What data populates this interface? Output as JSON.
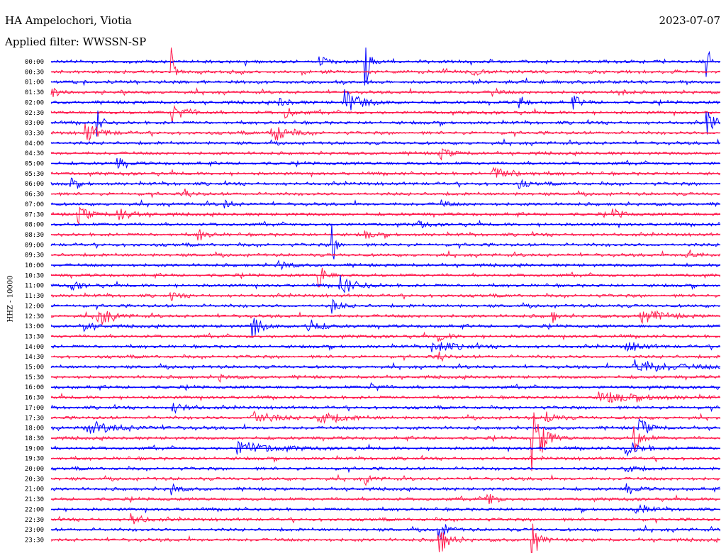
{
  "header": {
    "station": "HA Ampelochori, Viotia",
    "filter": "Applied filter: WWSSN-SP",
    "date": "2023-07-07"
  },
  "chart_data": {
    "type": "line",
    "channel_label": "HHZ - 10000",
    "row_labels": [
      "00:00",
      "00:30",
      "01:00",
      "01:30",
      "02:00",
      "02:30",
      "03:00",
      "03:30",
      "04:00",
      "04:30",
      "05:00",
      "05:30",
      "06:00",
      "06:30",
      "07:00",
      "07:30",
      "08:00",
      "08:30",
      "09:00",
      "09:30",
      "10:00",
      "10:30",
      "11:00",
      "11:30",
      "12:00",
      "12:30",
      "13:00",
      "13:30",
      "14:00",
      "14:30",
      "15:00",
      "15:30",
      "16:00",
      "16:30",
      "17:00",
      "17:30",
      "18:00",
      "18:30",
      "19:00",
      "19:30",
      "20:00",
      "20:30",
      "21:00",
      "21:30",
      "22:00",
      "22:30",
      "23:00",
      "23:30"
    ],
    "series_colors": [
      "#0000ff",
      "#ff1a4d"
    ],
    "events": [
      {
        "row": 0,
        "t": 0.4,
        "amp": 8,
        "dur": 0.01
      },
      {
        "row": 0,
        "t": 0.47,
        "amp": 40,
        "dur": 0.006
      },
      {
        "row": 0,
        "t": 0.98,
        "amp": 40,
        "dur": 0.003
      },
      {
        "row": 1,
        "t": 0.63,
        "amp": 6,
        "dur": 0.01
      },
      {
        "row": 1,
        "t": 0.18,
        "amp": 38,
        "dur": 0.003
      },
      {
        "row": 3,
        "t": 0.0,
        "amp": 7,
        "dur": 0.01
      },
      {
        "row": 3,
        "t": 0.66,
        "amp": 6,
        "dur": 0.008
      },
      {
        "row": 3,
        "t": 0.85,
        "amp": 7,
        "dur": 0.008
      },
      {
        "row": 4,
        "t": 0.34,
        "amp": 8,
        "dur": 0.012
      },
      {
        "row": 4,
        "t": 0.44,
        "amp": 18,
        "dur": 0.02
      },
      {
        "row": 4,
        "t": 0.7,
        "amp": 10,
        "dur": 0.008
      },
      {
        "row": 4,
        "t": 0.78,
        "amp": 10,
        "dur": 0.01
      },
      {
        "row": 5,
        "t": 0.18,
        "amp": 14,
        "dur": 0.018
      },
      {
        "row": 5,
        "t": 0.35,
        "amp": 9,
        "dur": 0.01
      },
      {
        "row": 6,
        "t": 0.98,
        "amp": 16,
        "dur": 0.015
      },
      {
        "row": 6,
        "t": 0.07,
        "amp": 20,
        "dur": 0.006
      },
      {
        "row": 7,
        "t": 0.05,
        "amp": 16,
        "dur": 0.018
      },
      {
        "row": 7,
        "t": 0.33,
        "amp": 16,
        "dur": 0.018
      },
      {
        "row": 9,
        "t": 0.58,
        "amp": 8,
        "dur": 0.015
      },
      {
        "row": 10,
        "t": 0.1,
        "amp": 8,
        "dur": 0.01
      },
      {
        "row": 11,
        "t": 0.66,
        "amp": 8,
        "dur": 0.03
      },
      {
        "row": 12,
        "t": 0.03,
        "amp": 7,
        "dur": 0.01
      },
      {
        "row": 12,
        "t": 0.7,
        "amp": 6,
        "dur": 0.01
      },
      {
        "row": 13,
        "t": 0.2,
        "amp": 6,
        "dur": 0.01
      },
      {
        "row": 14,
        "t": 0.26,
        "amp": 6,
        "dur": 0.01
      },
      {
        "row": 14,
        "t": 0.58,
        "amp": 6,
        "dur": 0.01
      },
      {
        "row": 15,
        "t": 0.04,
        "amp": 12,
        "dur": 0.015
      },
      {
        "row": 15,
        "t": 0.1,
        "amp": 10,
        "dur": 0.02
      },
      {
        "row": 15,
        "t": 0.84,
        "amp": 7,
        "dur": 0.012
      },
      {
        "row": 16,
        "t": 0.55,
        "amp": 6,
        "dur": 0.008
      },
      {
        "row": 17,
        "t": 0.22,
        "amp": 8,
        "dur": 0.012
      },
      {
        "row": 17,
        "t": 0.47,
        "amp": 6,
        "dur": 0.01
      },
      {
        "row": 18,
        "t": 0.42,
        "amp": 36,
        "dur": 0.004
      },
      {
        "row": 19,
        "t": 0.95,
        "amp": 10,
        "dur": 0.01
      },
      {
        "row": 20,
        "t": 0.34,
        "amp": 10,
        "dur": 0.01
      },
      {
        "row": 21,
        "t": 0.4,
        "amp": 22,
        "dur": 0.008
      },
      {
        "row": 22,
        "t": 0.43,
        "amp": 16,
        "dur": 0.02
      },
      {
        "row": 22,
        "t": 0.03,
        "amp": 6,
        "dur": 0.015
      },
      {
        "row": 23,
        "t": 0.18,
        "amp": 6,
        "dur": 0.01
      },
      {
        "row": 24,
        "t": 0.42,
        "amp": 10,
        "dur": 0.01
      },
      {
        "row": 25,
        "t": 0.07,
        "amp": 18,
        "dur": 0.015
      },
      {
        "row": 25,
        "t": 0.88,
        "amp": 12,
        "dur": 0.025
      },
      {
        "row": 25,
        "t": 0.75,
        "amp": 8,
        "dur": 0.006
      },
      {
        "row": 26,
        "t": 0.3,
        "amp": 18,
        "dur": 0.012
      },
      {
        "row": 26,
        "t": 0.38,
        "amp": 14,
        "dur": 0.015
      },
      {
        "row": 26,
        "t": 0.05,
        "amp": 8,
        "dur": 0.012
      },
      {
        "row": 27,
        "t": 0.58,
        "amp": 6,
        "dur": 0.012
      },
      {
        "row": 28,
        "t": 0.57,
        "amp": 8,
        "dur": 0.03
      },
      {
        "row": 28,
        "t": 0.86,
        "amp": 7,
        "dur": 0.02
      },
      {
        "row": 29,
        "t": 0.58,
        "amp": 8,
        "dur": 0.008
      },
      {
        "row": 30,
        "t": 0.87,
        "amp": 10,
        "dur": 0.05
      },
      {
        "row": 31,
        "t": 0.25,
        "amp": 6,
        "dur": 0.01
      },
      {
        "row": 32,
        "t": 0.48,
        "amp": 7,
        "dur": 0.01
      },
      {
        "row": 33,
        "t": 0.82,
        "amp": 7,
        "dur": 0.06
      },
      {
        "row": 34,
        "t": 0.18,
        "amp": 7,
        "dur": 0.02
      },
      {
        "row": 35,
        "t": 0.3,
        "amp": 12,
        "dur": 0.025
      },
      {
        "row": 35,
        "t": 0.4,
        "amp": 12,
        "dur": 0.025
      },
      {
        "row": 35,
        "t": 0.74,
        "amp": 10,
        "dur": 0.012
      },
      {
        "row": 36,
        "t": 0.05,
        "amp": 8,
        "dur": 0.05
      },
      {
        "row": 36,
        "t": 0.88,
        "amp": 14,
        "dur": 0.012
      },
      {
        "row": 37,
        "t": 0.72,
        "amp": 60,
        "dur": 0.012
      },
      {
        "row": 37,
        "t": 0.87,
        "amp": 24,
        "dur": 0.01
      },
      {
        "row": 38,
        "t": 0.28,
        "amp": 10,
        "dur": 0.04
      },
      {
        "row": 38,
        "t": 0.86,
        "amp": 10,
        "dur": 0.02
      },
      {
        "row": 40,
        "t": 0.86,
        "amp": 8,
        "dur": 0.012
      },
      {
        "row": 41,
        "t": 0.47,
        "amp": 6,
        "dur": 0.01
      },
      {
        "row": 42,
        "t": 0.18,
        "amp": 10,
        "dur": 0.008
      },
      {
        "row": 42,
        "t": 0.86,
        "amp": 7,
        "dur": 0.012
      },
      {
        "row": 43,
        "t": 0.65,
        "amp": 14,
        "dur": 0.01
      },
      {
        "row": 44,
        "t": 0.87,
        "amp": 10,
        "dur": 0.015
      },
      {
        "row": 45,
        "t": 0.12,
        "amp": 8,
        "dur": 0.015
      },
      {
        "row": 46,
        "t": 0.58,
        "amp": 16,
        "dur": 0.01
      },
      {
        "row": 47,
        "t": 0.58,
        "amp": 22,
        "dur": 0.012
      },
      {
        "row": 47,
        "t": 0.72,
        "amp": 40,
        "dur": 0.006
      }
    ]
  }
}
